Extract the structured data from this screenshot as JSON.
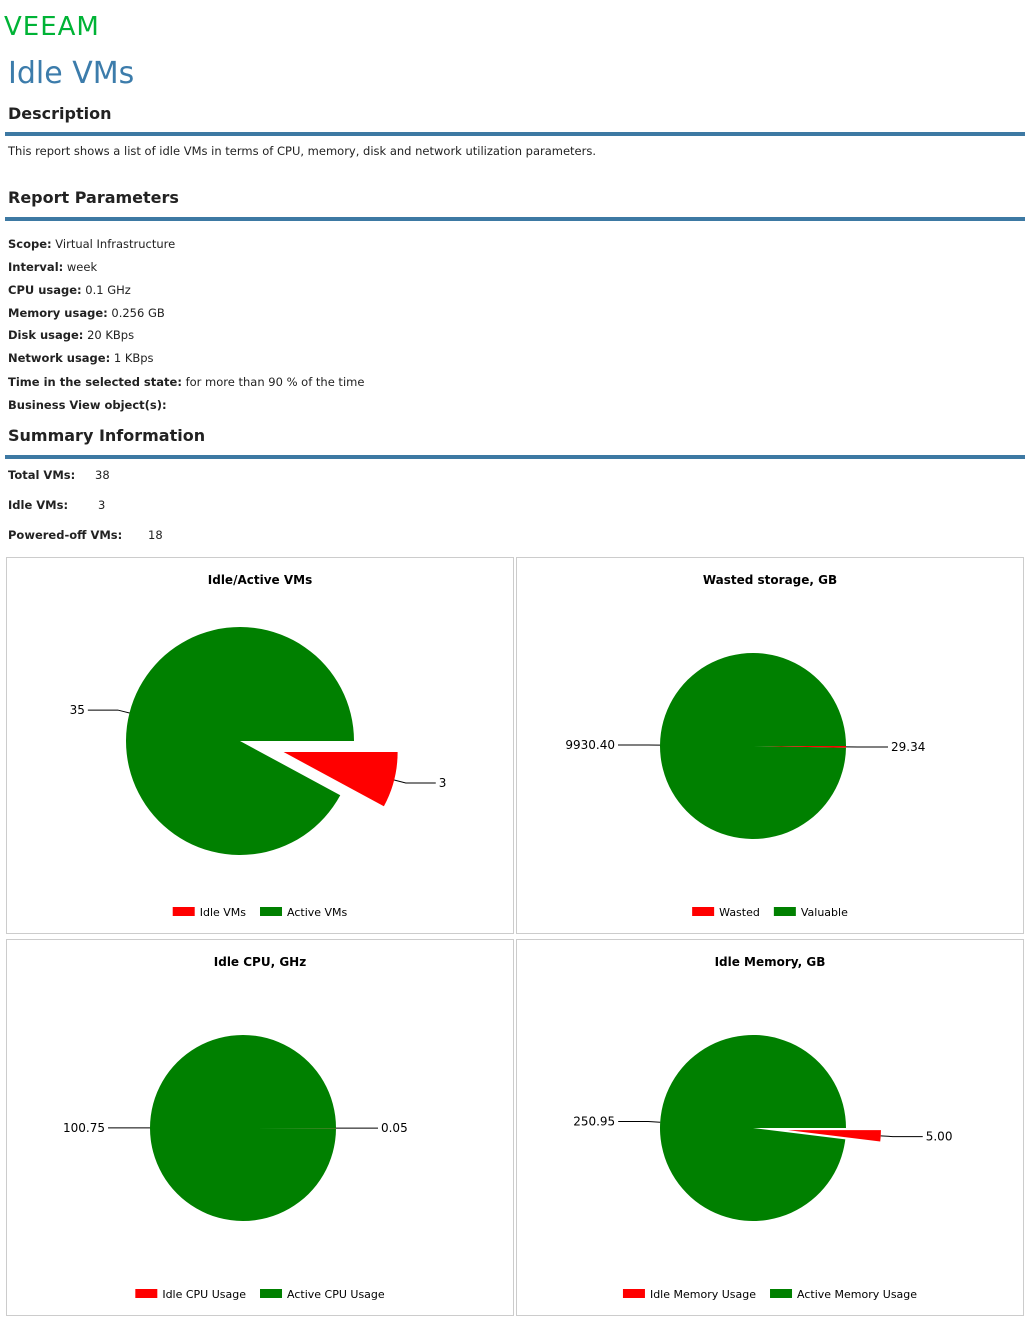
{
  "logo": "VEEAM",
  "title": "Idle VMs",
  "description": {
    "heading": "Description",
    "text": "This report shows a list of idle VMs in terms of CPU, memory, disk and network utilization parameters."
  },
  "parameters": {
    "heading": "Report Parameters",
    "items": [
      {
        "label": "Scope:",
        "value": "Virtual Infrastructure"
      },
      {
        "label": "Interval:",
        "value": "week"
      },
      {
        "label": "CPU usage:",
        "value": "0.1 GHz"
      },
      {
        "label": "Memory usage:",
        "value": "0.256 GB"
      },
      {
        "label": "Disk usage:",
        "value": "20 KBps"
      },
      {
        "label": "Network usage:",
        "value": "1 KBps"
      },
      {
        "label": "Time in the selected state:",
        "value": "for more than 90 % of the time"
      },
      {
        "label": "Business View object(s):"
      }
    ]
  },
  "summary": {
    "heading": "Summary Information",
    "items": [
      {
        "label": "Total VMs:",
        "value": 38
      },
      {
        "label": "Idle VMs:",
        "value": 3
      },
      {
        "label": "Powered-off VMs:",
        "value": 18
      }
    ]
  },
  "chart_data": [
    {
      "type": "pie",
      "title": "Idle/Active VMs",
      "categories": [
        "Idle VMs",
        "Active VMs"
      ],
      "values": [
        3,
        35
      ],
      "colors": [
        "#ff0000",
        "#008000"
      ]
    },
    {
      "type": "pie",
      "title": "Wasted storage, GB",
      "categories": [
        "Wasted",
        "Valuable"
      ],
      "values": [
        29.34,
        9930.4
      ],
      "value_labels": [
        "29.34",
        "9930.40"
      ],
      "colors": [
        "#ff0000",
        "#008000"
      ]
    },
    {
      "type": "pie",
      "title": "Idle CPU, GHz",
      "categories": [
        "Idle CPU Usage",
        "Active CPU Usage"
      ],
      "values": [
        0.05,
        100.75
      ],
      "colors": [
        "#ff0000",
        "#008000"
      ]
    },
    {
      "type": "pie",
      "title": "Idle Memory, GB",
      "categories": [
        "Idle Memory Usage",
        "Active Memory Usage"
      ],
      "values": [
        5,
        250.95
      ],
      "value_labels": [
        "5.00",
        "250.95"
      ],
      "colors": [
        "#ff0000",
        "#008000"
      ]
    }
  ]
}
